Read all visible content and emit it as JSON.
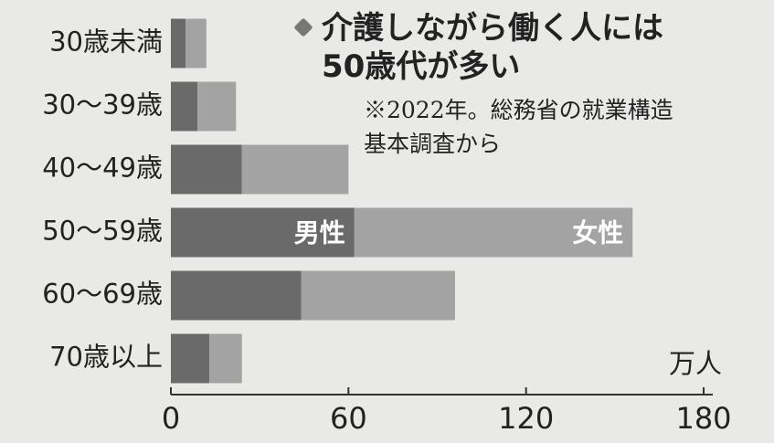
{
  "chart_data": {
    "type": "stacked-bar-horizontal",
    "title": "介護しながら働く人には\n50歳代が多い",
    "note": "※2022年。総務省の就業構造\n基本調査から",
    "unit": "万人",
    "categories": [
      "30歳未満",
      "30〜39歳",
      "40〜49歳",
      "50〜59歳",
      "60〜69歳",
      "70歳以上"
    ],
    "series": [
      {
        "name": "男性",
        "color": "#6a6a6a",
        "values": [
          5,
          9,
          24,
          62,
          44,
          13
        ]
      },
      {
        "name": "女性",
        "color": "#a3a3a3",
        "values": [
          7,
          13,
          36,
          94,
          52,
          11
        ]
      }
    ],
    "xlim": [
      0,
      180
    ],
    "xticks": [
      0,
      60,
      120,
      180
    ]
  }
}
